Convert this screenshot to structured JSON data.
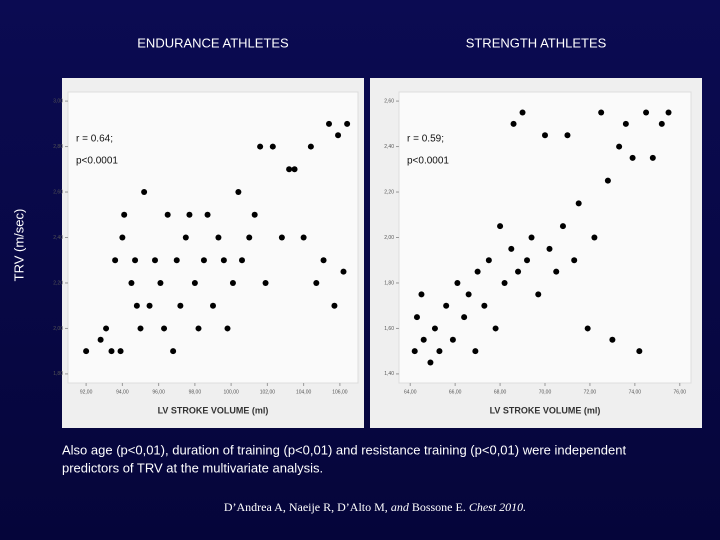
{
  "chart_data": [
    {
      "type": "scatter",
      "title": "ENDURANCE ATHLETES",
      "xlabel": "LV STROKE VOLUME (ml)",
      "annotations": [
        "r = 0.64;",
        "p<0.0001"
      ],
      "color": "#000000",
      "x": [
        92.0,
        92.8,
        93.1,
        93.4,
        93.9,
        93.6,
        94.0,
        94.1,
        94.5,
        94.7,
        94.8,
        95.0,
        95.2,
        95.5,
        95.8,
        96.1,
        96.3,
        96.5,
        96.8,
        97.0,
        97.2,
        97.5,
        97.7,
        98.0,
        98.2,
        98.5,
        98.7,
        99.0,
        99.3,
        99.6,
        99.8,
        100.1,
        100.4,
        100.6,
        101.0,
        101.3,
        101.6,
        101.9,
        102.3,
        102.8,
        103.2,
        103.5,
        104.0,
        104.4,
        104.7,
        105.1,
        105.4,
        105.7,
        105.9,
        106.2,
        106.4
      ],
      "values": [
        1.9,
        1.95,
        2.0,
        1.9,
        1.9,
        2.3,
        2.4,
        2.5,
        2.2,
        2.3,
        2.1,
        2.0,
        2.6,
        2.1,
        2.3,
        2.2,
        2.0,
        2.5,
        1.9,
        2.3,
        2.1,
        2.4,
        2.5,
        2.2,
        2.0,
        2.3,
        2.5,
        2.1,
        2.4,
        2.3,
        2.0,
        2.2,
        2.6,
        2.3,
        2.4,
        2.5,
        2.8,
        2.2,
        2.8,
        2.4,
        2.7,
        2.7,
        2.4,
        2.8,
        2.2,
        2.3,
        2.9,
        2.1,
        2.85,
        2.25,
        2.9
      ],
      "xlim": [
        91,
        107
      ],
      "ylim": [
        1.76,
        3.04
      ],
      "xticks": [
        {
          "value": 92,
          "label": "92,00"
        },
        {
          "value": 94,
          "label": "94,00"
        },
        {
          "value": 96,
          "label": "96,00"
        },
        {
          "value": 98,
          "label": "98,00"
        },
        {
          "value": 100,
          "label": "100,00"
        },
        {
          "value": 102,
          "label": "102,00"
        },
        {
          "value": 104,
          "label": "104,00"
        },
        {
          "value": 106,
          "label": "106,00"
        }
      ],
      "yticks": [
        {
          "value": 1.8,
          "label": "1,80"
        },
        {
          "value": 2.0,
          "label": "2,00"
        },
        {
          "value": 2.2,
          "label": "2,20"
        },
        {
          "value": 2.4,
          "label": "2,40"
        },
        {
          "value": 2.6,
          "label": "2,60"
        },
        {
          "value": 2.8,
          "label": "2,80"
        },
        {
          "value": 3.0,
          "label": "3,00"
        }
      ]
    },
    {
      "type": "scatter",
      "title": "STRENGTH  ATHLETES",
      "xlabel": "LV STROKE VOLUME (ml)",
      "annotations": [
        "r = 0.59;",
        "p<0.0001"
      ],
      "color": "#000000",
      "x": [
        64.2,
        64.3,
        64.5,
        64.6,
        64.9,
        65.1,
        65.3,
        65.6,
        65.9,
        66.1,
        66.4,
        66.6,
        66.9,
        67.0,
        67.3,
        67.5,
        67.8,
        68.0,
        68.2,
        68.5,
        68.6,
        68.8,
        69.0,
        69.2,
        69.4,
        69.7,
        70.0,
        70.2,
        70.5,
        70.8,
        71.0,
        71.3,
        71.5,
        71.9,
        72.2,
        72.5,
        72.8,
        73.0,
        73.3,
        73.6,
        73.9,
        74.2,
        74.5,
        74.8,
        75.2,
        75.5
      ],
      "values": [
        1.5,
        1.65,
        1.75,
        1.55,
        1.45,
        1.6,
        1.5,
        1.7,
        1.55,
        1.8,
        1.65,
        1.75,
        1.5,
        1.85,
        1.7,
        1.9,
        1.6,
        2.05,
        1.8,
        1.95,
        2.5,
        1.85,
        2.55,
        1.9,
        2.0,
        1.75,
        2.45,
        1.95,
        1.85,
        2.05,
        2.45,
        1.9,
        2.15,
        1.6,
        2.0,
        2.55,
        2.25,
        1.55,
        2.4,
        2.5,
        2.35,
        1.5,
        2.55,
        2.35,
        2.5,
        2.55
      ],
      "xlim": [
        63.5,
        76.5
      ],
      "ylim": [
        1.36,
        2.64
      ],
      "xticks": [
        {
          "value": 64,
          "label": "64,00"
        },
        {
          "value": 66,
          "label": "66,00"
        },
        {
          "value": 68,
          "label": "68,00"
        },
        {
          "value": 70,
          "label": "70,00"
        },
        {
          "value": 72,
          "label": "72,00"
        },
        {
          "value": 74,
          "label": "74,00"
        },
        {
          "value": 76,
          "label": "76,00"
        }
      ],
      "yticks": [
        {
          "value": 1.4,
          "label": "1,40"
        },
        {
          "value": 1.6,
          "label": "1,60"
        },
        {
          "value": 1.8,
          "label": "1,80"
        },
        {
          "value": 2.0,
          "label": "2,00"
        },
        {
          "value": 2.2,
          "label": "2,20"
        },
        {
          "value": 2.4,
          "label": "2,40"
        },
        {
          "value": 2.6,
          "label": "2,60"
        }
      ]
    }
  ],
  "ylabel": "TRV (m/sec)",
  "caption": [
    "Also age (p<0,01), duration of training (p<0,01) and resistance training (p<0,01) were independent",
    "predictors of TRV at the multivariate analysis."
  ],
  "citation": {
    "authors": "D’Andrea  A, Naeije R, D’Alto M,",
    "and": "and",
    "last": "Bossone E.",
    "journal": "Chest 2010."
  }
}
